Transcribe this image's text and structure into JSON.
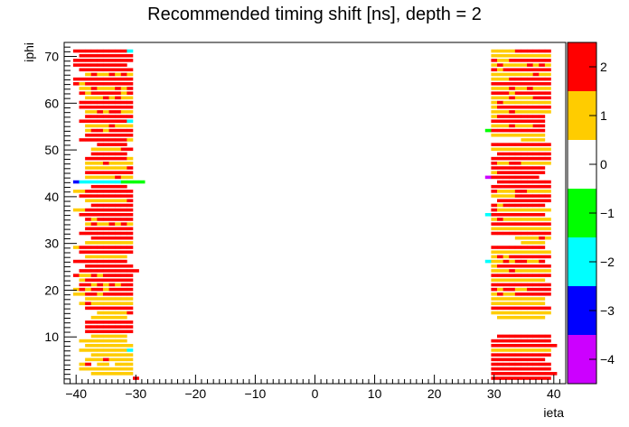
{
  "chart_data": {
    "type": "heatmap",
    "title": "Recommended timing shift [ns], depth = 2",
    "xlabel": "ieta",
    "ylabel": "iphi",
    "xlim": [
      -42,
      42
    ],
    "ylim": [
      0,
      73
    ],
    "xticks": [
      -40,
      -30,
      -20,
      -10,
      0,
      10,
      20,
      30,
      40
    ],
    "yticks": [
      10,
      20,
      30,
      40,
      50,
      60,
      70
    ],
    "color_scale": {
      "zlim": [
        -4.5,
        2.5
      ],
      "ticks": [
        -4,
        -3,
        -2,
        -1,
        0,
        1,
        2
      ],
      "bands": [
        {
          "from": 1.5,
          "to": 2.5,
          "color": "#ff0000"
        },
        {
          "from": 0.5,
          "to": 1.5,
          "color": "#ffcc00"
        },
        {
          "from": -0.5,
          "to": 0.5,
          "color": "#ffffff"
        },
        {
          "from": -1.5,
          "to": -0.5,
          "color": "#00ff00"
        },
        {
          "from": -2.5,
          "to": -1.5,
          "color": "#00ffff"
        },
        {
          "from": -3.5,
          "to": -2.5,
          "color": "#0000ff"
        },
        {
          "from": -4.5,
          "to": -3.5,
          "color": "#cc00ff"
        }
      ]
    },
    "cell_colors": {
      "2": "#ff0000",
      "1": "#ffcc00",
      "-1": "#00ff00",
      "-2": "#00ffff",
      "-3": "#0000ff",
      "-4": "#cc00ff"
    },
    "neg_columns": [
      -41,
      -40,
      -39,
      -38,
      -37,
      -36,
      -35,
      -34,
      -33,
      -32,
      -31,
      -30,
      -29
    ],
    "pos_columns": [
      29,
      30,
      31,
      32,
      33,
      34,
      35,
      36,
      37,
      38,
      39,
      40,
      41
    ],
    "rows": [
      {
        "iphi": 71,
        "neg": "0222222222-20",
        "pos": "0111122222200"
      },
      {
        "iphi": 70,
        "neg": "0022222222200",
        "pos": "0111111111100"
      },
      {
        "iphi": 69,
        "neg": "0222222222200",
        "pos": "0211222222200"
      },
      {
        "iphi": 68,
        "neg": "0222222222000",
        "pos": "0121111212100"
      },
      {
        "iphi": 67,
        "neg": "0022222222200",
        "pos": "0212222222200"
      },
      {
        "iphi": 66,
        "neg": "0001211212100",
        "pos": "0111111121100"
      },
      {
        "iphi": 65,
        "neg": "0222222222200",
        "pos": "0111222222200"
      },
      {
        "iphi": 64,
        "neg": "0212222222200",
        "pos": "0222222222200"
      },
      {
        "iphi": 63,
        "neg": "0011211121200",
        "pos": "0111211211100"
      },
      {
        "iphi": 62,
        "neg": "0021222221200",
        "pos": "0222122222200"
      },
      {
        "iphi": 61,
        "neg": "0001112121100",
        "pos": "0111211122200"
      },
      {
        "iphi": 60,
        "neg": "0022222222200",
        "pos": "0121111111100"
      },
      {
        "iphi": 59,
        "neg": "0022222222200",
        "pos": "0122222222200"
      },
      {
        "iphi": 58,
        "neg": "0001121221100",
        "pos": "0111211111100"
      },
      {
        "iphi": 57,
        "neg": "0002222222200",
        "pos": "0122222222000"
      },
      {
        "iphi": 56,
        "neg": "0022222222-20",
        "pos": "0222222222000"
      },
      {
        "iphi": 55,
        "neg": "0001111211100",
        "pos": "0111211122000"
      },
      {
        "iphi": 54,
        "neg": "0001221222200",
        "pos": "-122222222200"
      },
      {
        "iphi": 53,
        "neg": "0002222222200",
        "pos": "0111111111000"
      },
      {
        "iphi": 52,
        "neg": "0022222222100",
        "pos": "0000001111000"
      },
      {
        "iphi": 51,
        "neg": "0000022222000",
        "pos": "0222222222200"
      },
      {
        "iphi": 50,
        "neg": "0000111112200",
        "pos": "0111111111100"
      },
      {
        "iphi": 49,
        "neg": "0000222222000",
        "pos": "0022222222200"
      },
      {
        "iphi": 48,
        "neg": "0002222222100",
        "pos": "0222222222200"
      },
      {
        "iphi": 47,
        "neg": "0001112111100",
        "pos": "0211221111100"
      },
      {
        "iphi": 46,
        "neg": "0001111111200",
        "pos": "0222222222000"
      },
      {
        "iphi": 45,
        "neg": "0002222222200",
        "pos": "0122222222000"
      },
      {
        "iphi": 44,
        "neg": "0001111121100",
        "pos": "-422222222000"
      },
      {
        "iphi": 43,
        "neg": "0-3-2-2-2-2-2-2-2-1-1-1-1",
        "pos": "0022222222200"
      },
      {
        "iphi": 42,
        "neg": "0000222222000",
        "pos": "0222222222200"
      },
      {
        "iphi": 41,
        "neg": "0112222222200",
        "pos": "0211122111100"
      },
      {
        "iphi": 40,
        "neg": "0022222222200",
        "pos": "0111122222200"
      },
      {
        "iphi": 39,
        "neg": "0001111111200",
        "pos": "0022222222200"
      },
      {
        "iphi": 38,
        "neg": "0000222222200",
        "pos": "0212222222000"
      },
      {
        "iphi": 37,
        "neg": "0112222222200",
        "pos": "0211111111100"
      },
      {
        "iphi": 36,
        "neg": "0022222222200",
        "pos": "-222222222200"
      },
      {
        "iphi": 35,
        "neg": "0002122222200",
        "pos": "0121111111100"
      },
      {
        "iphi": 34,
        "neg": "0001211212100",
        "pos": "0222222222200"
      },
      {
        "iphi": 33,
        "neg": "0002222222200",
        "pos": "0111111111100"
      },
      {
        "iphi": 32,
        "neg": "0022222222200",
        "pos": "0222222222200"
      },
      {
        "iphi": 31,
        "neg": "0000222222200",
        "pos": "0000011112100"
      },
      {
        "iphi": 30,
        "neg": "0001111111100",
        "pos": "0000001111000"
      },
      {
        "iphi": 29,
        "neg": "0122222222200",
        "pos": "0222222222000"
      },
      {
        "iphi": 28,
        "neg": "0022222222200",
        "pos": "0111111111100"
      },
      {
        "iphi": 27,
        "neg": "0001111111000",
        "pos": "0121222222200"
      },
      {
        "iphi": 26,
        "neg": "0222222222000",
        "pos": "-211212211200"
      },
      {
        "iphi": 25,
        "neg": "0002222222200",
        "pos": "0122222222200"
      },
      {
        "iphi": 24,
        "neg": "0022222222220",
        "pos": "0111211111100"
      },
      {
        "iphi": 23,
        "neg": "0211212222200",
        "pos": "0222222222200"
      },
      {
        "iphi": 22,
        "neg": "0012222222200",
        "pos": "0111111111000"
      },
      {
        "iphi": 21,
        "neg": "0022121212200",
        "pos": "0222222222200"
      },
      {
        "iphi": 20,
        "neg": "0121221222200",
        "pos": "0212211222200"
      },
      {
        "iphi": 19,
        "neg": "0112212222200",
        "pos": "0121122222200"
      },
      {
        "iphi": 18,
        "neg": "0001111111100",
        "pos": "0111111111000"
      },
      {
        "iphi": 17,
        "neg": "0012111111100",
        "pos": "0111111111000"
      },
      {
        "iphi": 16,
        "neg": "0002222222200",
        "pos": "0222222222200"
      },
      {
        "iphi": 15,
        "neg": "0000011111200",
        "pos": "0111111111100"
      },
      {
        "iphi": 14,
        "neg": "0000111111000",
        "pos": "0011111111000"
      },
      {
        "iphi": 13,
        "neg": "0002222222200",
        "pos": "0000000000000"
      },
      {
        "iphi": 12,
        "neg": "0002222222200",
        "pos": "0000000000000"
      },
      {
        "iphi": 11,
        "neg": "0002222222200",
        "pos": "0000000000000"
      },
      {
        "iphi": 10,
        "neg": "0000111111000",
        "pos": "0022222222200"
      },
      {
        "iphi": 9,
        "neg": "0011111111000",
        "pos": "0222222222200"
      },
      {
        "iphi": 8,
        "neg": "0001111111100",
        "pos": "0222222222220"
      },
      {
        "iphi": 7,
        "neg": "0011111111-20",
        "pos": "0111111111100"
      },
      {
        "iphi": 6,
        "neg": "0000111111100",
        "pos": "0222222222200"
      },
      {
        "iphi": 5,
        "neg": "0001112111100",
        "pos": "0222222222000"
      },
      {
        "iphi": 4,
        "neg": "0012011011100",
        "pos": "0222222222200"
      },
      {
        "iphi": 3,
        "neg": "0011111111100",
        "pos": "0222222222200"
      },
      {
        "iphi": 2,
        "neg": "0000111111100",
        "pos": "0222222222220"
      },
      {
        "iphi": 1,
        "neg": "0000000000020",
        "pos": "0222222222200"
      }
    ]
  }
}
